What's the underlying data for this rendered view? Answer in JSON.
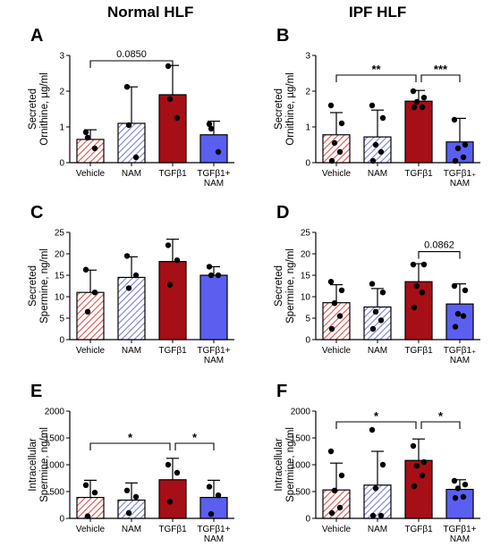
{
  "titles": {
    "left": "Normal HLF",
    "right": "IPF HLF"
  },
  "colors": {
    "vehicle": "#d9534f",
    "nam": "#7b7fd6",
    "tgfb1": "#a50f15",
    "combo": "#5a5ff0"
  },
  "chart_data": [
    {
      "panel": "A",
      "type": "bar",
      "ylabel": [
        "Secreted",
        "Ornithine, µg/ml"
      ],
      "ylim": [
        0,
        3
      ],
      "yticks": [
        0,
        1,
        2,
        3
      ],
      "categories": [
        [
          "Vehicle"
        ],
        [
          "NAM"
        ],
        [
          "TGFβ1"
        ],
        [
          "TGFβ1+",
          "NAM"
        ]
      ],
      "values": [
        0.65,
        1.1,
        1.9,
        0.78
      ],
      "errors": [
        0.27,
        1.02,
        0.82,
        0.38
      ],
      "points": [
        [
          0.85,
          0.4,
          0.7
        ],
        [
          2.12,
          0.15,
          1.05
        ],
        [
          2.7,
          1.25,
          1.78
        ],
        [
          1.08,
          0.3,
          0.95
        ]
      ],
      "annotations": [
        {
          "from": 0,
          "to": 2,
          "y": 2.85,
          "text": "0.0850"
        }
      ]
    },
    {
      "panel": "B",
      "type": "bar",
      "ylabel": [
        "Secreted",
        "Ornithine, µg/ml"
      ],
      "ylim": [
        0,
        3
      ],
      "yticks": [
        0,
        1,
        2,
        3
      ],
      "categories": [
        [
          "Vehicle"
        ],
        [
          "NAM"
        ],
        [
          "TGFβ1"
        ],
        [
          "TGFβ1₊",
          "NAM"
        ]
      ],
      "values": [
        0.78,
        0.72,
        1.72,
        0.58
      ],
      "errors": [
        0.62,
        0.75,
        0.3,
        0.66
      ],
      "points": [
        [
          1.6,
          1.1,
          0.55,
          0.3,
          0.05
        ],
        [
          1.6,
          1.25,
          0.5,
          0.3,
          0.05
        ],
        [
          2.0,
          1.82,
          1.7,
          1.55,
          1.55
        ],
        [
          1.2,
          0.5,
          0.4,
          0.15,
          0.05
        ]
      ],
      "annotations": [
        {
          "from": 0,
          "to": 2,
          "y": 2.45,
          "text": "**"
        },
        {
          "from": 2,
          "to": 3,
          "y": 2.45,
          "text": "***"
        }
      ]
    },
    {
      "panel": "C",
      "type": "bar",
      "ylabel": [
        "Secreted",
        "Spermine, ng/ml"
      ],
      "ylim": [
        0,
        25
      ],
      "yticks": [
        0,
        5,
        10,
        15,
        20,
        25
      ],
      "categories": [
        [
          "Vehicle"
        ],
        [
          "NAM"
        ],
        [
          "TGFβ1"
        ],
        [
          "TGFβ1+",
          "NAM"
        ]
      ],
      "values": [
        11,
        14.5,
        18.2,
        15
      ],
      "errors": [
        5.2,
        4.8,
        5.2,
        2.0
      ],
      "points": [
        [
          16.3,
          11,
          6.5
        ],
        [
          19.5,
          15,
          12
        ],
        [
          22,
          18.5,
          12.8
        ],
        [
          17,
          15,
          15
        ]
      ],
      "annotations": []
    },
    {
      "panel": "D",
      "type": "bar",
      "ylabel": [
        "Secreted",
        "Spermine, ng/ml"
      ],
      "ylim": [
        0,
        25
      ],
      "yticks": [
        0,
        5,
        10,
        15,
        20,
        25
      ],
      "categories": [
        [
          "Vehicle"
        ],
        [
          "NAM"
        ],
        [
          "TGFβ1"
        ],
        [
          "TGFβ1₊",
          "NAM"
        ]
      ],
      "values": [
        8.6,
        7.6,
        13.5,
        8.3
      ],
      "errors": [
        4.2,
        4.3,
        4.2,
        4.7
      ],
      "points": [
        [
          13.5,
          11.5,
          8.5,
          5.5,
          2.5
        ],
        [
          13,
          11,
          6.5,
          4.5,
          2.5
        ],
        [
          17.5,
          17.5,
          12.5,
          11,
          7.5
        ],
        [
          12.5,
          11.5,
          6,
          5.5,
          3
        ]
      ],
      "annotations": [
        {
          "from": 2,
          "to": 3,
          "y": 20.5,
          "text": "0.0862"
        }
      ]
    },
    {
      "panel": "E",
      "type": "bar",
      "ylabel": [
        "Intracellular",
        "Spermine, ng/ml"
      ],
      "ylim": [
        0,
        2000
      ],
      "yticks": [
        0,
        500,
        1000,
        1500,
        2000
      ],
      "categories": [
        [
          "Vehicle"
        ],
        [
          "NAM"
        ],
        [
          "TGFβ1"
        ],
        [
          "TGFβ1+",
          "NAM"
        ]
      ],
      "values": [
        390,
        340,
        720,
        390
      ],
      "errors": [
        320,
        320,
        400,
        320
      ],
      "points": [
        [
          620,
          480,
          40
        ],
        [
          520,
          400,
          100
        ],
        [
          1000,
          850,
          310
        ],
        [
          590,
          430,
          80
        ]
      ],
      "annotations": [
        {
          "from": 0,
          "to": 2,
          "y": 1400,
          "text": "*"
        },
        {
          "from": 2,
          "to": 3,
          "y": 1400,
          "text": "*"
        }
      ]
    },
    {
      "panel": "F",
      "type": "bar",
      "ylabel": [
        "Intracellular",
        "Spermine, ng/ml"
      ],
      "ylim": [
        0,
        2000
      ],
      "yticks": [
        0,
        500,
        1000,
        1500,
        2000
      ],
      "categories": [
        [
          "Vehicle"
        ],
        [
          "NAM"
        ],
        [
          "TGFβ1"
        ],
        [
          "TGFβ1+",
          "NAM"
        ]
      ],
      "values": [
        530,
        620,
        1080,
        540
      ],
      "errors": [
        500,
        630,
        400,
        180
      ],
      "points": [
        [
          1250,
          800,
          520,
          200,
          100
        ],
        [
          1650,
          1000,
          560,
          50,
          50
        ],
        [
          1350,
          1050,
          980,
          800,
          600
        ],
        [
          700,
          630,
          560,
          400,
          380
        ]
      ],
      "annotations": [
        {
          "from": 0,
          "to": 2,
          "y": 1800,
          "text": "*"
        },
        {
          "from": 2,
          "to": 3,
          "y": 1800,
          "text": "*"
        }
      ]
    }
  ]
}
